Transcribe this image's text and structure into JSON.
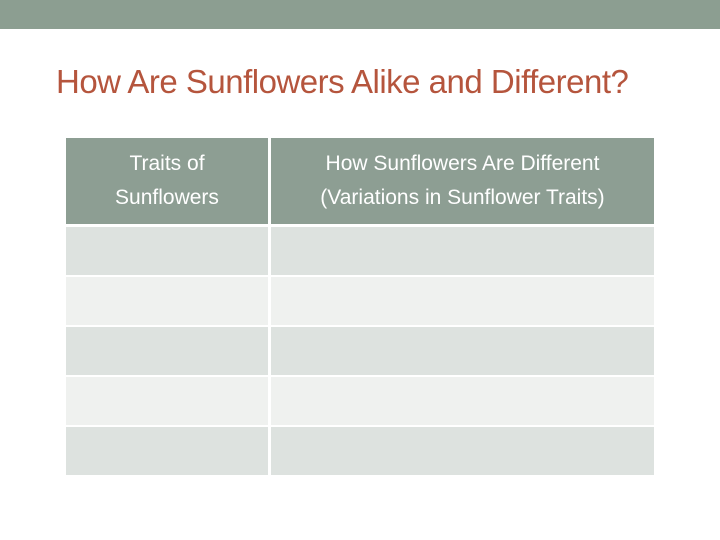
{
  "slide": {
    "title": "How Are Sunflowers Alike and Different?"
  },
  "table": {
    "headers": [
      {
        "line1": "Traits of",
        "line2": "Sunflowers"
      },
      {
        "line1": "How Sunflowers Are Different",
        "line2": "(Variations in Sunflower Traits)"
      }
    ],
    "rows": [
      [
        "",
        ""
      ],
      [
        "",
        ""
      ],
      [
        "",
        ""
      ],
      [
        "",
        ""
      ],
      [
        "",
        ""
      ]
    ]
  },
  "colors": {
    "top_band": "#8c9e91",
    "title": "#b5553d",
    "header_bg": "#8d9e93",
    "row_dark": "#dde2df",
    "row_light": "#eff1ef"
  }
}
